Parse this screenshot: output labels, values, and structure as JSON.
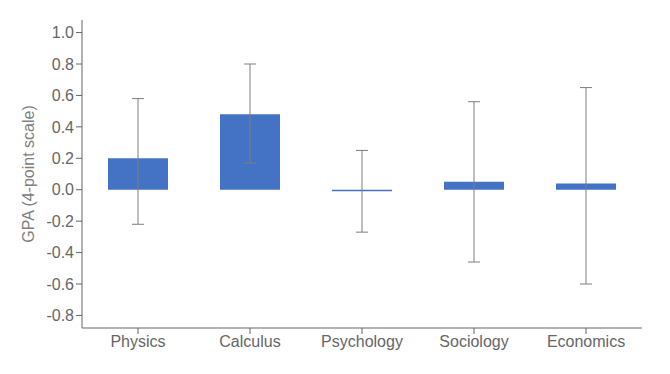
{
  "chart_data": {
    "type": "bar",
    "categories": [
      "Physics",
      "Calculus",
      "Psychology",
      "Sociology",
      "Economics"
    ],
    "values": [
      0.2,
      0.48,
      -0.01,
      0.05,
      0.04
    ],
    "error_bars": {
      "upper": [
        0.38,
        0.32,
        0.26,
        0.51,
        0.61
      ],
      "lower": [
        0.42,
        0.31,
        0.26,
        0.51,
        0.64
      ],
      "color": "#7F7F7F"
    },
    "color": "#4472C4",
    "ylabel": "GPA (4-point scale)",
    "ylim": [
      -0.88,
      1.08
    ],
    "yticks": [
      -0.8,
      -0.6,
      -0.4,
      -0.2,
      {
        "value": 0,
        "label": "0.0"
      },
      0.2,
      0.4,
      0.6,
      0.8,
      {
        "value": 1,
        "label": "1.0"
      }
    ],
    "grid": false
  }
}
